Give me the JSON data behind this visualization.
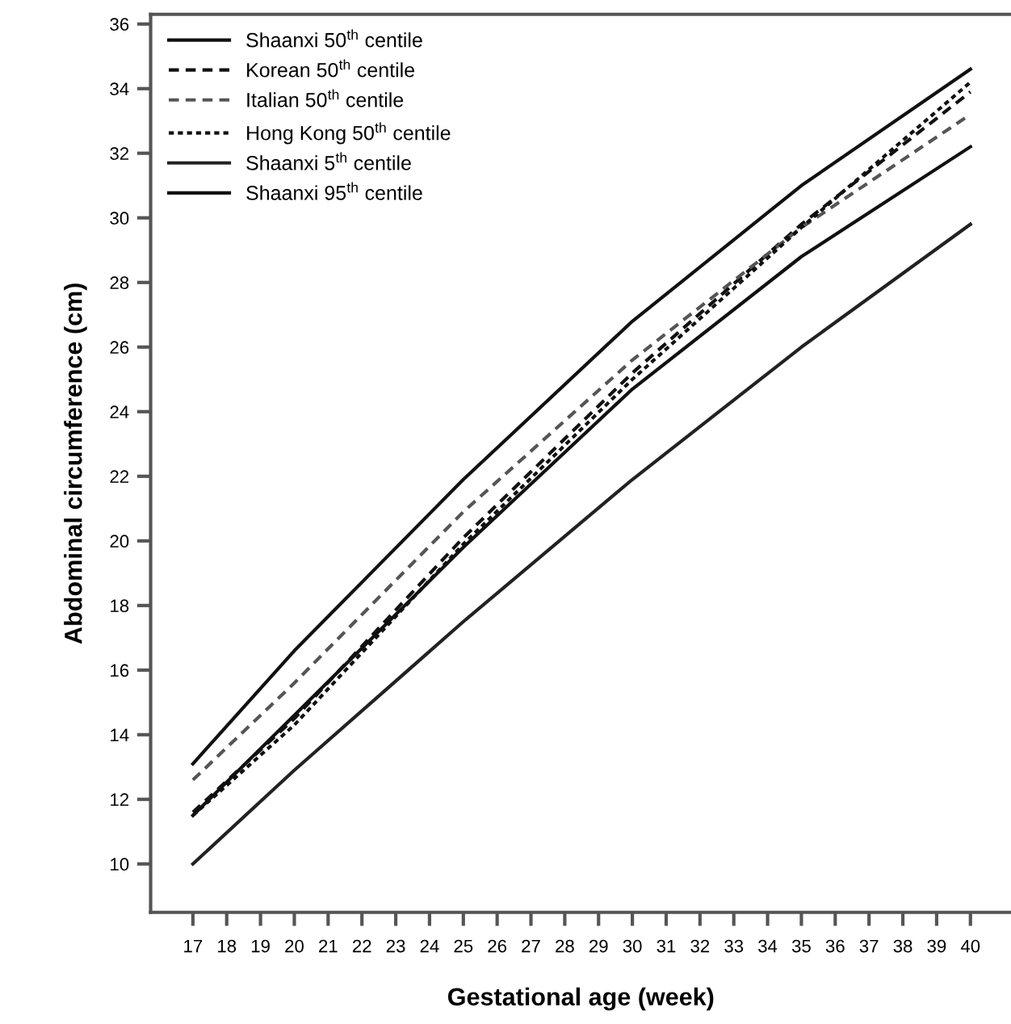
{
  "chart_data": {
    "type": "line",
    "xlabel": "Gestational age (week)",
    "ylabel": "Abdominal circumference (cm)",
    "x": [
      17,
      20,
      25,
      30,
      35,
      40
    ],
    "series": [
      {
        "name": "Shaanxi 50$^{th}$ centile",
        "color": "#111111",
        "line_style": "solid",
        "values": [
          11.5,
          14.6,
          19.8,
          24.7,
          28.8,
          32.2
        ]
      },
      {
        "name": "Korean 50$^{th}$ centile",
        "color": "#111111",
        "line_style": "dashed",
        "values": [
          11.6,
          14.5,
          20.1,
          25.2,
          29.8,
          33.9
        ]
      },
      {
        "name": "Italian 50$^{th}$ centile",
        "color": "#555555",
        "line_style": "dashed",
        "values": [
          12.6,
          15.6,
          20.9,
          25.6,
          29.7,
          33.2
        ]
      },
      {
        "name": "Hong Kong 50$^{th}$ centile",
        "color": "#111111",
        "line_style": "dotted",
        "values": [
          11.5,
          14.3,
          19.9,
          25.0,
          29.7,
          34.2
        ]
      },
      {
        "name": "Shaanxi 5$^{th}$ centile",
        "color": "#222222",
        "line_style": "solid",
        "values": [
          10.0,
          12.9,
          17.5,
          21.9,
          26.0,
          29.8
        ]
      },
      {
        "name": "Shaanxi 95$^{th}$ centile",
        "color": "#111111",
        "line_style": "solid",
        "values": [
          13.1,
          16.6,
          21.9,
          26.8,
          31.0,
          34.6
        ]
      }
    ],
    "xlim": [
      15.75,
      41.2
    ],
    "ylim": [
      8.5,
      36.3
    ],
    "xticks": [
      17,
      18,
      19,
      20,
      21,
      22,
      23,
      24,
      25,
      26,
      27,
      28,
      29,
      30,
      31,
      32,
      33,
      34,
      35,
      36,
      37,
      38,
      39,
      40
    ],
    "yticks": [
      10,
      12,
      14,
      16,
      18,
      20,
      22,
      24,
      26,
      28,
      30,
      32,
      34,
      36
    ],
    "grid": false,
    "legend": "top left",
    "marker": "none"
  }
}
